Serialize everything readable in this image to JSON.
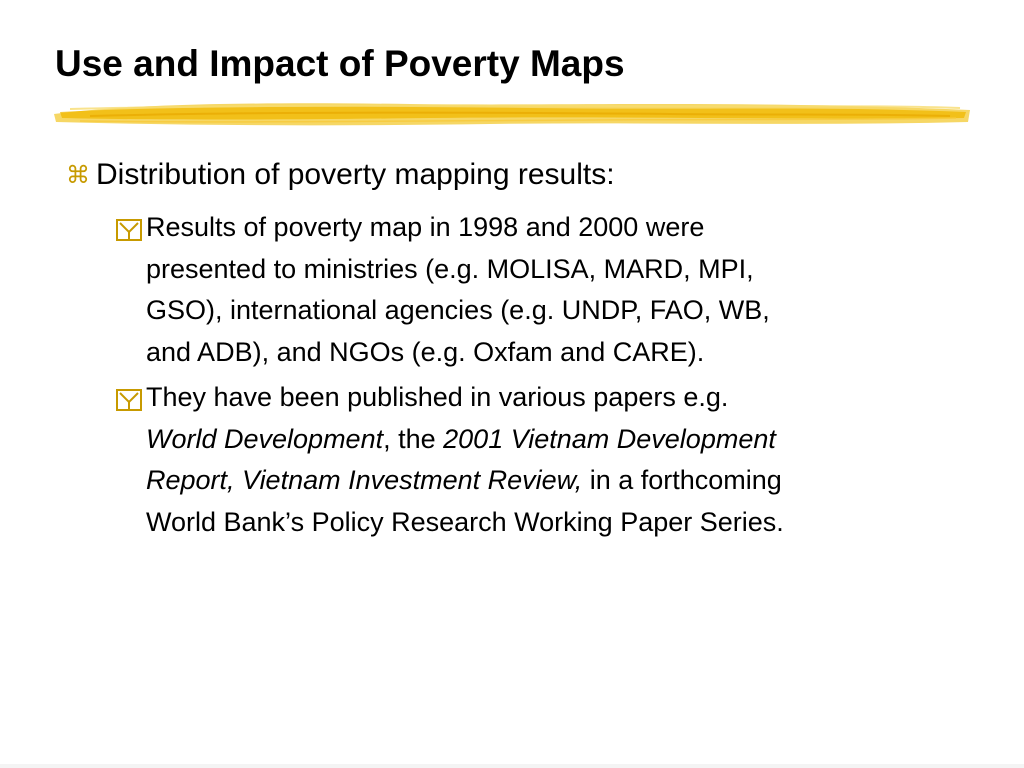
{
  "slide": {
    "title": "Use and Impact of Poverty Maps",
    "accent_color": "#F2C21A",
    "bullet_level1": {
      "icon": "command-icon",
      "text": "Distribution of poverty mapping results:"
    },
    "bullets_level2": [
      {
        "icon": "checkbox-y-icon",
        "lines": [
          "Results of poverty map in 1998 and 2000 were",
          "presented to ministries (e.g. MOLISA, MARD, MPI,",
          "GSO), international agencies (e.g. UNDP, FAO, WB,",
          "and ADB), and NGOs (e.g. Oxfam and CARE)."
        ]
      },
      {
        "icon": "checkbox-y-icon",
        "line1": "They have been published in various papers e.g.",
        "line2_italic_a": "World Development",
        "line2_sep": ", the ",
        "line2_italic_b": "2001 Vietnam Development",
        "line3_italic": "Report, Vietnam Investment Review,",
        "line3_rest": " in a forthcoming",
        "line4": "World Bank’s Policy Research Working Paper Series."
      }
    ]
  }
}
